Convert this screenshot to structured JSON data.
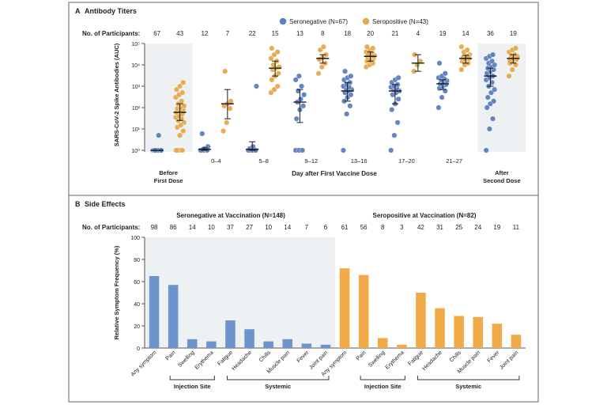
{
  "chart_data": [
    {
      "type": "scatter",
      "panel_label": "A",
      "title": "Antibody Titers",
      "ylabel": "SARS-CoV-2 Spike Antibodies (AUC)",
      "xlabel": "Day after First Vaccine Dose",
      "y_scale": "log",
      "ylim": [
        1,
        100000
      ],
      "y_ticks": [
        "10⁰",
        "10¹",
        "10²",
        "10³",
        "10⁴",
        "10⁵"
      ],
      "participants_label": "No. of Participants:",
      "legend": {
        "placement": "top-right",
        "entries": [
          "Seronegative (N=67)",
          "Seropositive (N=43)"
        ]
      },
      "colors": {
        "seronegative": "#5b7fbf",
        "seropositive": "#e5a94b",
        "shade": "#edf1f3",
        "errorbar": "#1a1a1a"
      },
      "categories": [
        {
          "label": "Before First Dose",
          "label_lines": [
            "Before",
            "First Dose"
          ],
          "shaded": true,
          "seronegative": {
            "n": "67",
            "median": 1,
            "low": 1,
            "high": 1,
            "points": [
              1,
              1,
              1,
              1,
              1,
              1,
              1,
              1,
              1,
              1,
              5
            ]
          },
          "seropositive": {
            "n": "43",
            "median": 60,
            "low": 25,
            "high": 150,
            "points": [
              1,
              1,
              1,
              1,
              5,
              8,
              12,
              15,
              20,
              25,
              30,
              35,
              40,
              50,
              60,
              70,
              80,
              90,
              100,
              120,
              150,
              200,
              300,
              400,
              500,
              700,
              1000,
              1500
            ]
          }
        },
        {
          "label": "0–4",
          "label_lines": [
            "0–4"
          ],
          "shaded": false,
          "seronegative": {
            "n": "12",
            "median": 1.1,
            "low": 1,
            "high": 1.3,
            "points": [
              1,
              1,
              1,
              1,
              1.2,
              1.5,
              6
            ]
          },
          "seropositive": {
            "n": "7",
            "median": 150,
            "low": 30,
            "high": 700,
            "points": [
              8,
              20,
              90,
              120,
              150,
              200,
              5000
            ]
          }
        },
        {
          "label": "5–8",
          "label_lines": [
            "5–8"
          ],
          "shaded": false,
          "seronegative": {
            "n": "22",
            "median": 1.1,
            "low": 1,
            "high": 2.5,
            "points": [
              1,
              1,
              1,
              1,
              1,
              1,
              1.2,
              1.5,
              1000
            ]
          },
          "seropositive": {
            "n": "15",
            "median": 7000,
            "low": 3000,
            "high": 15000,
            "points": [
              500,
              700,
              1000,
              2000,
              3000,
              4000,
              6000,
              7000,
              8000,
              10000,
              15000,
              20000,
              30000,
              40000,
              60000
            ]
          }
        },
        {
          "label": "9–12",
          "label_lines": [
            "9–12"
          ],
          "shaded": false,
          "seronegative": {
            "n": "13",
            "median": 180,
            "low": 20,
            "high": 700,
            "points": [
              1,
              1,
              1,
              30,
              80,
              120,
              180,
              250,
              400,
              600,
              1000,
              2000,
              3000
            ]
          },
          "seropositive": {
            "n": "8",
            "median": 20000,
            "low": 12000,
            "high": 30000,
            "points": [
              4000,
              8000,
              12000,
              18000,
              22000,
              30000,
              50000,
              70000
            ]
          }
        },
        {
          "label": "13–16",
          "label_lines": [
            "13–16"
          ],
          "shaded": false,
          "seronegative": {
            "n": "18",
            "median": 600,
            "low": 200,
            "high": 1500,
            "points": [
              1,
              50,
              120,
              200,
              300,
              400,
              500,
              600,
              700,
              800,
              900,
              1000,
              1200,
              1500,
              2000,
              2500,
              3000,
              5000
            ]
          },
          "seropositive": {
            "n": "20",
            "median": 25000,
            "low": 15000,
            "high": 40000,
            "points": [
              8000,
              10000,
              12000,
              15000,
              18000,
              20000,
              22000,
              25000,
              28000,
              30000,
              35000,
              40000,
              50000,
              60000,
              70000,
              15000,
              25000,
              30000
            ]
          }
        },
        {
          "label": "17–20",
          "label_lines": [
            "17–20"
          ],
          "shaded": false,
          "seronegative": {
            "n": "21",
            "median": 600,
            "low": 150,
            "high": 1200,
            "points": [
              1,
              5,
              20,
              80,
              150,
              250,
              400,
              500,
              600,
              700,
              800,
              900,
              1000,
              1200,
              1500,
              2000,
              2500
            ]
          },
          "seropositive": {
            "n": "4",
            "median": 12000,
            "low": 5000,
            "high": 30000,
            "points": [
              5000,
              10000,
              15000,
              30000
            ]
          }
        },
        {
          "label": "21–27",
          "label_lines": [
            "21–27"
          ],
          "shaded": false,
          "seronegative": {
            "n": "19",
            "median": 1300,
            "low": 700,
            "high": 2000,
            "points": [
              100,
              300,
              600,
              800,
              1000,
              1200,
              1300,
              1500,
              1800,
              2000,
              2200,
              2500,
              3000,
              4000,
              12000
            ]
          },
          "seropositive": {
            "n": "14",
            "median": 20000,
            "low": 12000,
            "high": 28000,
            "points": [
              6000,
              10000,
              12000,
              15000,
              18000,
              20000,
              22000,
              25000,
              30000,
              40000,
              50000,
              70000,
              18000,
              25000
            ]
          }
        },
        {
          "label": "After Second Dose",
          "label_lines": [
            "After",
            "Second Dose"
          ],
          "shaded": true,
          "seronegative": {
            "n": "36",
            "median": 3000,
            "low": 1000,
            "high": 7000,
            "points": [
              1,
              10,
              30,
              100,
              150,
              200,
              300,
              500,
              700,
              1000,
              1500,
              2000,
              2500,
              3000,
              4000,
              5000,
              6000,
              7000,
              8000,
              10000,
              12000,
              15000,
              20000,
              25000,
              30000
            ]
          },
          "seropositive": {
            "n": "19",
            "median": 20000,
            "low": 12000,
            "high": 30000,
            "points": [
              3000,
              6000,
              10000,
              12000,
              15000,
              18000,
              20000,
              22000,
              25000,
              28000,
              30000,
              40000,
              50000,
              60000,
              15000,
              20000
            ]
          }
        }
      ]
    },
    {
      "type": "bar",
      "panel_label": "B",
      "title": "Side Effects",
      "ylabel": "Relative Symptom Frequency (%)",
      "ylim": [
        0,
        100
      ],
      "y_ticks": [
        0,
        20,
        40,
        60,
        80,
        100
      ],
      "participants_label": "No. of Participants:",
      "categories": [
        "Any symptom",
        "Pain",
        "Swelling",
        "Erythema",
        "Fatigue",
        "Headache",
        "Chills",
        "Muscle pain",
        "Fever",
        "Joint pain"
      ],
      "category_groups": [
        {
          "label": "Injection Site",
          "from": 1,
          "to": 3
        },
        {
          "label": "Systemic",
          "from": 4,
          "to": 9
        }
      ],
      "series": [
        {
          "name": "Seronegative at Vaccination (N=148)",
          "color": "#6d94cc",
          "participants": [
            "98",
            "86",
            "14",
            "10",
            "37",
            "27",
            "10",
            "14",
            "7",
            "6"
          ],
          "values": [
            65,
            57,
            8,
            6,
            25,
            17,
            6,
            8,
            4,
            3
          ]
        },
        {
          "name": "Seropositive at Vaccination (N=82)",
          "color": "#f0aa48",
          "participants": [
            "61",
            "56",
            "8",
            "3",
            "42",
            "31",
            "25",
            "24",
            "19",
            "11"
          ],
          "values": [
            72,
            66,
            9,
            3,
            50,
            36,
            29,
            28,
            22,
            12
          ]
        }
      ],
      "colors": {
        "shade": "#edf1f3"
      }
    }
  ]
}
